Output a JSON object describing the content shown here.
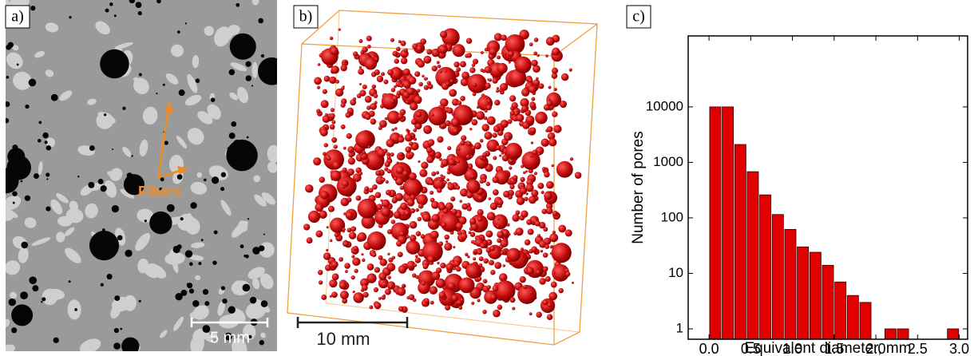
{
  "panels": {
    "a": {
      "label": "a)",
      "annotation": "Fibers",
      "scale_bar": "5 mm"
    },
    "b": {
      "label": "b)",
      "scale_bar": "10 mm"
    },
    "c": {
      "label": "c)"
    }
  },
  "chart_data": {
    "type": "histogram",
    "x_label": "Equivalent diameter, mm",
    "y_label": "Number of pores",
    "bins": [
      0,
      0.15,
      0.3,
      0.45,
      0.6,
      0.75,
      0.9,
      1.05,
      1.2,
      1.35,
      1.5,
      1.65,
      1.8,
      1.95,
      2.1,
      2.25,
      2.4,
      2.55,
      2.7,
      2.85,
      3.0
    ],
    "values": [
      10000,
      10000,
      2100,
      680,
      260,
      115,
      62,
      30,
      24,
      14,
      7,
      4,
      3,
      0,
      1,
      1,
      0,
      0,
      0,
      1
    ],
    "color": "#e00000",
    "xlim": [
      -0.25,
      3.1
    ],
    "ylim": [
      0.65,
      190000
    ],
    "log_y": true,
    "xticks": [
      {
        "value": 0,
        "label": "0.0"
      },
      0.5,
      {
        "value": 1,
        "label": "1.0"
      },
      1.5,
      {
        "value": 2,
        "label": "2.0"
      },
      2.5,
      {
        "value": 3,
        "label": "3.0"
      }
    ],
    "yticks": [
      1,
      10,
      100,
      1000,
      10000
    ]
  }
}
